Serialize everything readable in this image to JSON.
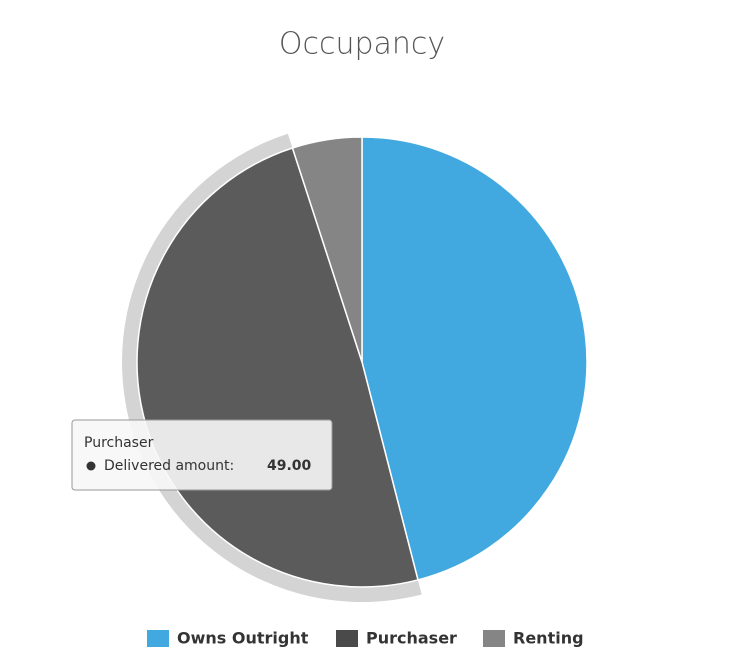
{
  "chart_data": {
    "type": "pie",
    "title": "Occupancy",
    "categories": [
      "Owns Outright",
      "Purchaser",
      "Renting"
    ],
    "values": [
      46,
      49,
      5
    ],
    "value_labels": [
      null,
      "49.00",
      null
    ],
    "tooltip_label": "Delivered amount:",
    "colors": [
      "#42a9e0",
      "#5b5b5b",
      "#858585"
    ],
    "legend_colors": [
      "#42a9e0",
      "#4a4a4a",
      "#858585"
    ],
    "legend": "bottom"
  }
}
